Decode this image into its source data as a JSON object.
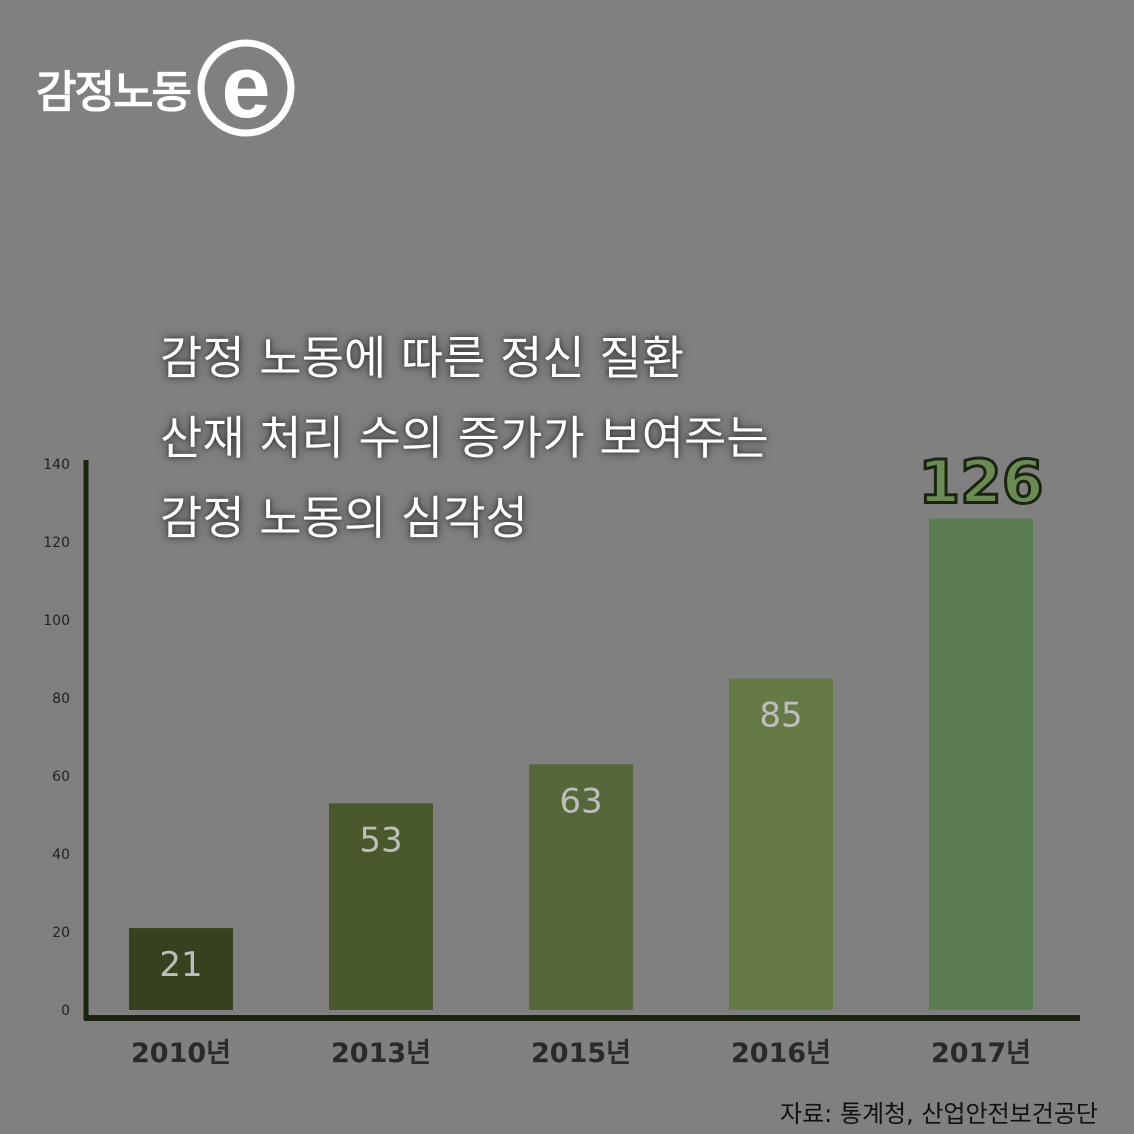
{
  "logo": {
    "text": "감정노동",
    "mark": "e"
  },
  "title_lines": [
    "감정 노동에 따른 정신 질환",
    "산재 처리 수의 증가가 보여주는",
    "감정 노동의 심각성"
  ],
  "source": "자료: 통계청, 산업안전보건공단",
  "colors": {
    "background": "#808080",
    "axis": "#1a2410",
    "bars": [
      "#36421f",
      "#4a592c",
      "#56683a",
      "#667a45",
      "#5a7e52"
    ]
  },
  "chart_data": {
    "type": "bar",
    "categories": [
      "2010년",
      "2013년",
      "2015년",
      "2016년",
      "2017년"
    ],
    "values": [
      21,
      53,
      63,
      85,
      126
    ],
    "value_labels": [
      "21",
      "53",
      "63",
      "85",
      "126"
    ],
    "ylim": [
      0,
      140
    ],
    "yticks": [
      0,
      20,
      40,
      60,
      80,
      100,
      120,
      140
    ],
    "title": "감정 노동에 따른 정신 질환 산재 처리 수의 증가가 보여주는 감정 노동의 심각성",
    "xlabel": "",
    "ylabel": "",
    "grid": false,
    "legend": "none"
  }
}
